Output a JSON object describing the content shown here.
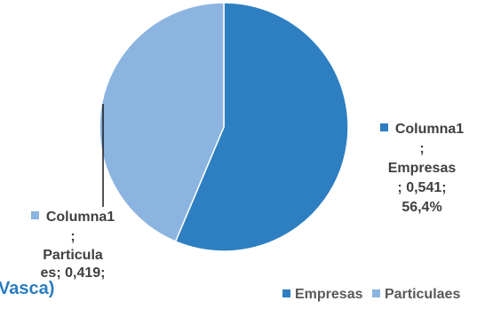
{
  "chart_data": {
    "type": "pie",
    "title": "Vasca)",
    "categories": [
      "Empresas",
      "Particulaes"
    ],
    "series": [
      {
        "name": "Columna1",
        "values": [
          0.541,
          0.419
        ]
      }
    ],
    "percent": [
      "56,4%",
      ""
    ],
    "colors": [
      "#2e7fc1",
      "#8cb4e0"
    ],
    "legend_position": "bottom",
    "data_labels": [
      {
        "series": "Columna1",
        "sep": ";",
        "category": "Empresas",
        "value": "; 0,541;",
        "percent": "56,4%"
      },
      {
        "series": "Columna1",
        "sep": ";",
        "category": "Particula\nes; 0,419;",
        "value": "",
        "percent": ""
      }
    ],
    "legend": [
      {
        "label": "Empresas",
        "color": "#2e7fc1"
      },
      {
        "label": "Particulaes",
        "color": "#8cb4e0"
      }
    ]
  }
}
